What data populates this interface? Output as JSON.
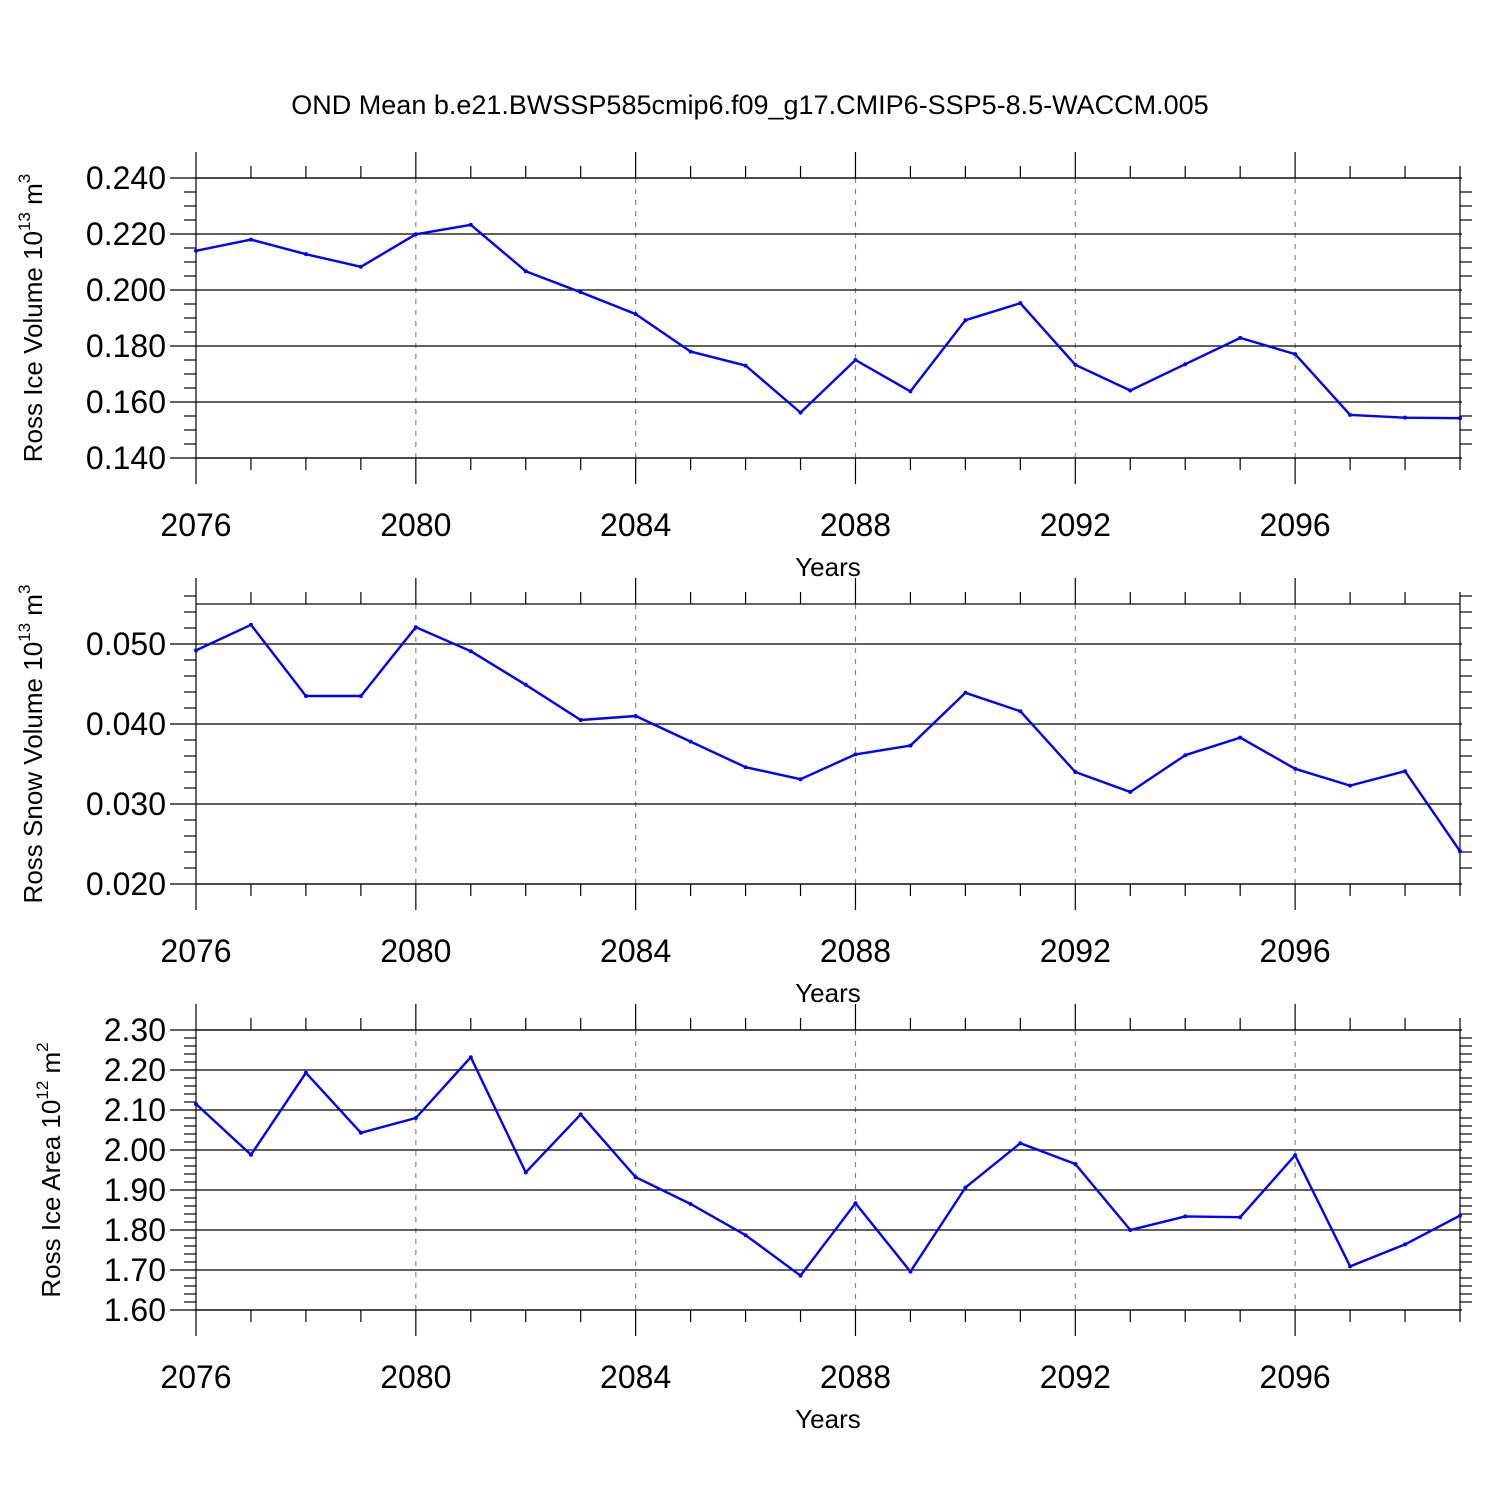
{
  "title": "OND Mean b.e21.BWSSP585cmip6.f09_g17.CMIP6-SSP5-8.5-WACCM.005",
  "chart_data": [
    {
      "type": "line",
      "xlabel": "Years",
      "ylabel": "Ross Ice Volume 10",
      "ylabel_exp": "13",
      "ylabel_unit": " m",
      "ylabel_unit_exp": "3",
      "xlim": [
        2076,
        2099
      ],
      "ylim": [
        0.14,
        0.24
      ],
      "x_ticks": [
        2076,
        2080,
        2084,
        2088,
        2092,
        2096
      ],
      "x_tick_labels": [
        "2076",
        "2080",
        "2084",
        "2088",
        "2092",
        "2096"
      ],
      "y_ticks": [
        0.14,
        0.16,
        0.18,
        0.2,
        0.22,
        0.24
      ],
      "y_tick_labels": [
        "0.140",
        "0.160",
        "0.180",
        "0.200",
        "0.220",
        "0.240"
      ],
      "y_minor_step": 0.005,
      "grid": "vertical dashed at major x ticks",
      "color": "#0000ff",
      "series": [
        {
          "x": [
            2076,
            2077,
            2078,
            2079,
            2080,
            2081,
            2082,
            2083,
            2084,
            2085,
            2086,
            2087,
            2088,
            2089,
            2090,
            2091,
            2092,
            2093,
            2094,
            2095,
            2096,
            2097,
            2098,
            2099
          ],
          "values": [
            0.214,
            0.218,
            0.2128,
            0.2083,
            0.2199,
            0.2233,
            0.2067,
            0.1992,
            0.1914,
            0.178,
            0.173,
            0.1562,
            0.175,
            0.1638,
            0.1892,
            0.1953,
            0.1733,
            0.1641,
            0.1735,
            0.1829,
            0.1771,
            0.1554,
            0.1544,
            0.1542
          ]
        }
      ]
    },
    {
      "type": "line",
      "xlabel": "Years",
      "ylabel": "Ross Snow Volume 10",
      "ylabel_exp": "13",
      "ylabel_unit": " m",
      "ylabel_unit_exp": "3",
      "xlim": [
        2076,
        2099
      ],
      "ylim": [
        0.02,
        0.055
      ],
      "x_ticks": [
        2076,
        2080,
        2084,
        2088,
        2092,
        2096
      ],
      "x_tick_labels": [
        "2076",
        "2080",
        "2084",
        "2088",
        "2092",
        "2096"
      ],
      "y_ticks": [
        0.02,
        0.03,
        0.04,
        0.05
      ],
      "y_tick_labels": [
        "0.020",
        "0.030",
        "0.040",
        "0.050"
      ],
      "y_minor_step": 0.002,
      "grid": "vertical dashed at major x ticks",
      "color": "#0000ff",
      "series": [
        {
          "x": [
            2076,
            2077,
            2078,
            2079,
            2080,
            2081,
            2082,
            2083,
            2084,
            2085,
            2086,
            2087,
            2088,
            2089,
            2090,
            2091,
            2092,
            2093,
            2094,
            2095,
            2096,
            2097,
            2098,
            2099
          ],
          "values": [
            0.0492,
            0.0524,
            0.0435,
            0.0435,
            0.0521,
            0.0491,
            0.0449,
            0.0405,
            0.041,
            0.0378,
            0.0346,
            0.0331,
            0.0362,
            0.0373,
            0.0439,
            0.0416,
            0.034,
            0.0315,
            0.0361,
            0.0383,
            0.0344,
            0.0323,
            0.0341,
            0.0241
          ]
        }
      ]
    },
    {
      "type": "line",
      "xlabel": "Years",
      "ylabel": "Ross Ice Area 10",
      "ylabel_exp": "12",
      "ylabel_unit": " m",
      "ylabel_unit_exp": "2",
      "xlim": [
        2076,
        2099
      ],
      "ylim": [
        1.6,
        2.3
      ],
      "x_ticks": [
        2076,
        2080,
        2084,
        2088,
        2092,
        2096
      ],
      "x_tick_labels": [
        "2076",
        "2080",
        "2084",
        "2088",
        "2092",
        "2096"
      ],
      "y_ticks": [
        1.6,
        1.7,
        1.8,
        1.9,
        2.0,
        2.1,
        2.2,
        2.3
      ],
      "y_tick_labels": [
        "1.60",
        "1.70",
        "1.80",
        "1.90",
        "2.00",
        "2.10",
        "2.20",
        "2.30"
      ],
      "y_minor_step": 0.02,
      "grid": "vertical dashed at major x ticks",
      "color": "#0000ff",
      "series": [
        {
          "x": [
            2076,
            2077,
            2078,
            2079,
            2080,
            2081,
            2082,
            2083,
            2084,
            2085,
            2086,
            2087,
            2088,
            2089,
            2090,
            2091,
            2092,
            2093,
            2094,
            2095,
            2096,
            2097,
            2098,
            2099
          ],
          "values": [
            2.115,
            1.988,
            2.193,
            2.043,
            2.08,
            2.232,
            1.944,
            2.089,
            1.932,
            1.865,
            1.787,
            1.686,
            1.867,
            1.696,
            1.906,
            2.017,
            1.965,
            1.8,
            1.834,
            1.832,
            1.987,
            1.709,
            1.764,
            1.836
          ]
        }
      ]
    }
  ]
}
